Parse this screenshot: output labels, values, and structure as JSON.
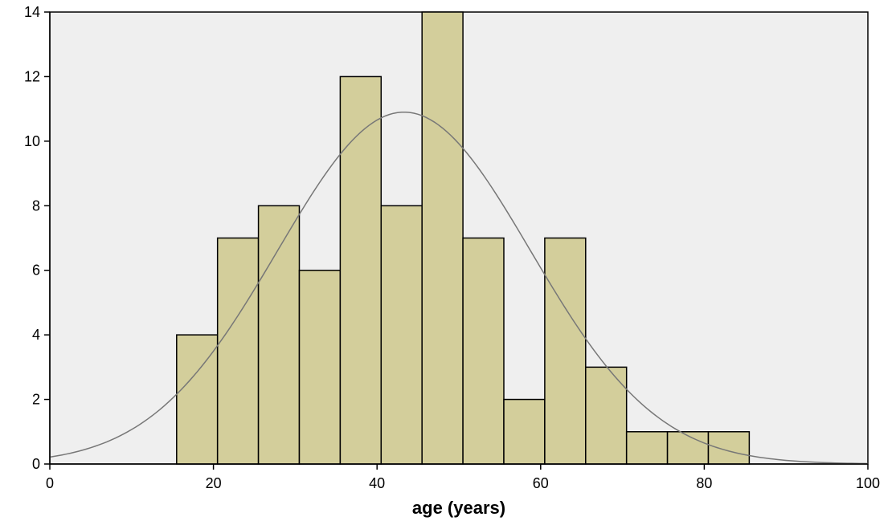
{
  "chart_data": {
    "type": "bar",
    "subtype": "histogram",
    "xlabel": "age (years)",
    "ylabel": "",
    "title": "",
    "xlim": [
      0,
      100
    ],
    "ylim": [
      0,
      14
    ],
    "x_ticks": [
      0,
      20,
      40,
      60,
      80,
      100
    ],
    "y_ticks": [
      0,
      2,
      4,
      6,
      8,
      10,
      12,
      14
    ],
    "bins": [
      {
        "start": 15.5,
        "end": 20.5,
        "count": 4
      },
      {
        "start": 20.5,
        "end": 25.5,
        "count": 7
      },
      {
        "start": 25.5,
        "end": 30.5,
        "count": 8
      },
      {
        "start": 30.5,
        "end": 35.5,
        "count": 6
      },
      {
        "start": 35.5,
        "end": 40.5,
        "count": 12
      },
      {
        "start": 40.5,
        "end": 45.5,
        "count": 8
      },
      {
        "start": 45.5,
        "end": 50.5,
        "count": 14
      },
      {
        "start": 50.5,
        "end": 55.5,
        "count": 7
      },
      {
        "start": 55.5,
        "end": 60.5,
        "count": 2
      },
      {
        "start": 60.5,
        "end": 65.5,
        "count": 7
      },
      {
        "start": 65.5,
        "end": 70.5,
        "count": 3
      },
      {
        "start": 70.5,
        "end": 75.5,
        "count": 1
      },
      {
        "start": 75.5,
        "end": 80.5,
        "count": 1
      },
      {
        "start": 80.5,
        "end": 85.5,
        "count": 1
      }
    ],
    "normal_curve": {
      "mean": 43.3,
      "sd": 15.45,
      "peak": 10.9
    },
    "grid": false,
    "colors": {
      "plot_background": "#efefef",
      "bar_fill": "#d3ce9b",
      "bar_stroke": "#000000",
      "curve": "#777777",
      "axis": "#000000"
    }
  }
}
